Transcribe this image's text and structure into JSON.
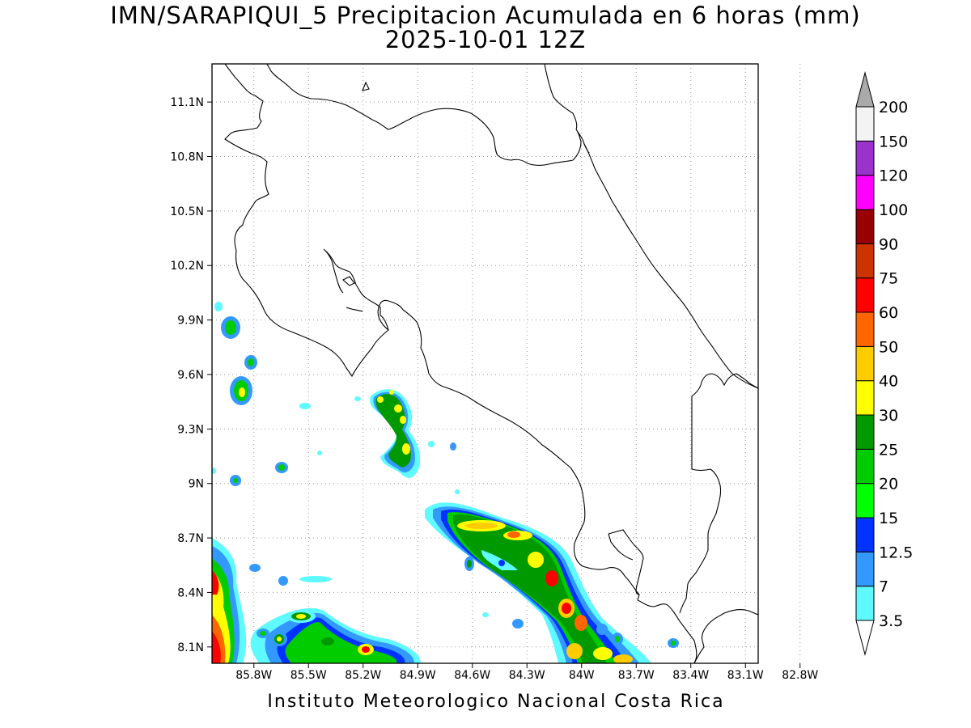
{
  "title": {
    "line1": "IMN/SARAPIQUI_5 Precipitacion Acumulada en 6 horas (mm)",
    "line2": "2025-10-01 12Z"
  },
  "footer": "Instituto Meteorologico Nacional Costa Rica",
  "axes": {
    "lon_ticks": [
      "85.8W",
      "85.5W",
      "85.2W",
      "84.9W",
      "84.6W",
      "84.3W",
      "84W",
      "83.7W",
      "83.4W",
      "83.1W",
      "82.8W"
    ],
    "lat_ticks": [
      "11.1N",
      "10.8N",
      "10.5N",
      "10.2N",
      "9.9N",
      "9.6N",
      "9.3N",
      "9N",
      "8.7N",
      "8.4N",
      "8.1N"
    ],
    "lon_values": [
      -85.8,
      -85.5,
      -85.2,
      -84.9,
      -84.6,
      -84.3,
      -84.0,
      -83.7,
      -83.4,
      -83.1,
      -82.8
    ],
    "lat_values": [
      11.1,
      10.8,
      10.5,
      10.2,
      9.9,
      9.6,
      9.3,
      9.0,
      8.7,
      8.4,
      8.1
    ],
    "lon_range": [
      -86.03,
      -83.03
    ],
    "lat_range": [
      8.01,
      11.31
    ],
    "grid": "dotted"
  },
  "colorbar": {
    "labels": [
      "3.5",
      "7",
      "12.5",
      "15",
      "20",
      "25",
      "30",
      "40",
      "50",
      "60",
      "75",
      "90",
      "100",
      "120",
      "150",
      "200"
    ],
    "colors": [
      "#5ffaff",
      "#3399ff",
      "#0033ff",
      "#00ff00",
      "#00cc00",
      "#009900",
      "#ffff00",
      "#ffcc00",
      "#ff6600",
      "#ff0000",
      "#cc3300",
      "#990000",
      "#ff00ff",
      "#9933cc",
      "#f3f3f3",
      "#aaaaaa"
    ]
  }
}
